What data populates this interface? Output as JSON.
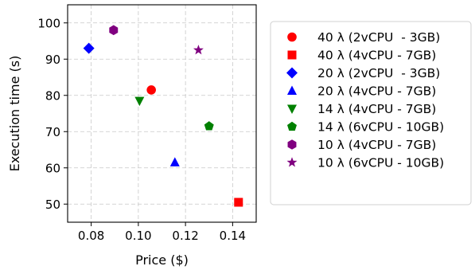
{
  "chart_data": {
    "type": "scatter",
    "title": "",
    "xlabel": "Price ($)",
    "ylabel": "Execution time (s)",
    "xlim": [
      0.07,
      0.15
    ],
    "ylim": [
      45,
      105
    ],
    "xticks": [
      0.08,
      0.1,
      0.12,
      0.14
    ],
    "xtick_labels": [
      "0.08",
      "0.10",
      "0.12",
      "0.14"
    ],
    "yticks": [
      50,
      60,
      70,
      80,
      90,
      100
    ],
    "ytick_labels": [
      "50",
      "60",
      "70",
      "80",
      "90",
      "100"
    ],
    "grid": true,
    "legend_position": "right-outside",
    "series": [
      {
        "name": "40 λ (2vCPU  - 3GB)",
        "marker": "circle",
        "color": "#ff0000",
        "x": 0.1055,
        "y": 81.5
      },
      {
        "name": "40 λ (4vCPU - 7GB)",
        "marker": "square",
        "color": "#ff0000",
        "x": 0.1425,
        "y": 50.5
      },
      {
        "name": "20 λ (2vCPU  - 3GB)",
        "marker": "diamond",
        "color": "#0000ff",
        "x": 0.079,
        "y": 93.0
      },
      {
        "name": "20 λ (4vCPU - 7GB)",
        "marker": "triangle-up",
        "color": "#0000ff",
        "x": 0.1155,
        "y": 61.5
      },
      {
        "name": "14 λ (4vCPU - 7GB)",
        "marker": "triangle-down",
        "color": "#008000",
        "x": 0.1005,
        "y": 78.5
      },
      {
        "name": "14 λ (6vCPU - 10GB)",
        "marker": "pentagon",
        "color": "#008000",
        "x": 0.13,
        "y": 71.5
      },
      {
        "name": "10 λ (4vCPU - 7GB)",
        "marker": "hexagon",
        "color": "#800080",
        "x": 0.0895,
        "y": 98.0
      },
      {
        "name": "10 λ (6vCPU - 10GB)",
        "marker": "star",
        "color": "#800080",
        "x": 0.1255,
        "y": 92.5
      }
    ]
  }
}
